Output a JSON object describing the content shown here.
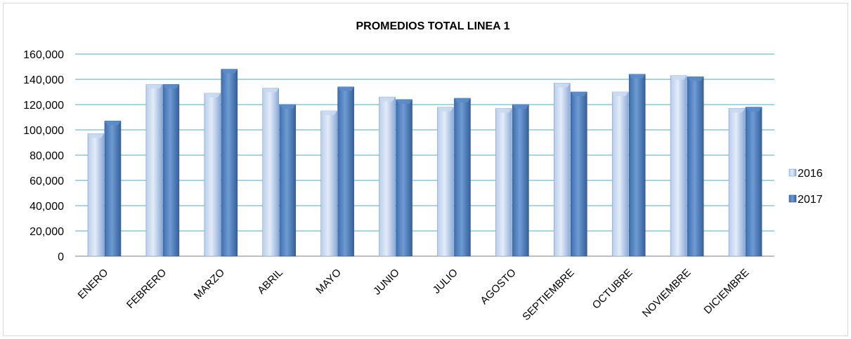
{
  "chart_data": {
    "type": "bar",
    "title": "PROMEDIOS TOTAL LINEA 1",
    "xlabel": "",
    "ylabel": "",
    "ylim": [
      0,
      160000
    ],
    "yticks": [
      "0",
      "20,000",
      "40,000",
      "60,000",
      "80,000",
      "100,000",
      "120,000",
      "140,000",
      "160,000"
    ],
    "ytick_values": [
      0,
      20000,
      40000,
      60000,
      80000,
      100000,
      120000,
      140000,
      160000
    ],
    "grid": true,
    "legend_position": "right",
    "categories": [
      "ENERO",
      "FEBRERO",
      "MARZO",
      "ABRIL",
      "MAYO",
      "JUNIO",
      "JULIO",
      "AGOSTO",
      "SEPTIEMBRE",
      "OCTUBRE",
      "NOVIEMBRE",
      "DICIEMBRE"
    ],
    "series": [
      {
        "name": "2016",
        "color": "#9fb9e1",
        "values": [
          97000,
          136000,
          129000,
          133000,
          115000,
          126000,
          118000,
          117000,
          137000,
          130000,
          143000,
          117000
        ]
      },
      {
        "name": "2017",
        "color": "#4f81bd",
        "values": [
          107000,
          136000,
          148000,
          120000,
          134000,
          124000,
          125000,
          120000,
          130000,
          144000,
          142000,
          118000
        ]
      }
    ],
    "colors": {
      "grid": "#4bacc6",
      "axis": "#7f7f7f"
    }
  }
}
